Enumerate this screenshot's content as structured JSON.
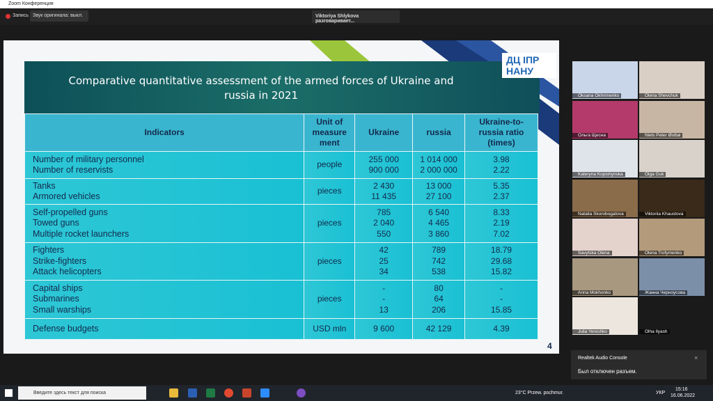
{
  "window": {
    "title": "Zoom Конференция"
  },
  "toolbar": {
    "record": "Запись",
    "audio": "Звук оригинала: выкл.",
    "speaker": "Viktoriya Shlykova разговаривает..."
  },
  "slide": {
    "logo_top": "ДЦ ІПР",
    "logo_bottom": "НАНУ",
    "title": "Comparative quantitative assessment of the armed forces of Ukraine and russia in 2021",
    "page_number": "4",
    "table": {
      "headers": [
        "Indicators",
        "Unit of measure ment",
        "Ukraine",
        "russia",
        "Ukraine-to-russia ratio (times)"
      ],
      "groups": [
        {
          "unit": "people",
          "rows": [
            [
              "Number of military personnel",
              "255 000",
              "1 014 000",
              "3.98"
            ],
            [
              "Number of reservists",
              "900 000",
              "2 000 000",
              "2.22"
            ]
          ]
        },
        {
          "unit": "pieces",
          "rows": [
            [
              "Tanks",
              "2 430",
              "13 000",
              "5.35"
            ],
            [
              "Armored vehicles",
              "11 435",
              "27 100",
              "2.37"
            ]
          ]
        },
        {
          "unit": "pieces",
          "rows": [
            [
              "Self-propelled guns",
              "785",
              "6 540",
              "8.33"
            ],
            [
              "Towed guns",
              "2 040",
              "4 465",
              "2.19"
            ],
            [
              "Multiple rocket launchers",
              "550",
              "3 860",
              "7.02"
            ]
          ]
        },
        {
          "unit": "pieces",
          "rows": [
            [
              "Fighters",
              "42",
              "789",
              "18.79"
            ],
            [
              "Strike-fighters",
              "25",
              "742",
              "29.68"
            ],
            [
              "Attack helicopters",
              "34",
              "538",
              "15.82"
            ]
          ]
        },
        {
          "unit": "pieces",
          "rows": [
            [
              "Capital ships",
              "-",
              "80",
              "-"
            ],
            [
              "Submarines",
              "-",
              "64",
              "-"
            ],
            [
              "Small warships",
              "13",
              "206",
              "15.85"
            ]
          ]
        },
        {
          "unit": "USD mln",
          "rows": [
            [
              "Defense budgets",
              "9 600",
              "42 129",
              "4.39"
            ]
          ]
        }
      ]
    }
  },
  "participants": [
    "Oksana Okhrimenko",
    "Olena Shevchuk",
    "Ольга Щесна",
    "Niels Peter Østbø",
    "Kateryna Kopishynska",
    "Olga Guk",
    "Natalia Skorobogatova",
    "Viktoriia Khaustova",
    "Savytska Olena",
    "Olena Trofymenko",
    "Anna Mokhonko",
    "Жанна Черноусова",
    "Julia Yereshko",
    "Olha Ilyash"
  ],
  "notification": {
    "app": "Realtek Audio Console",
    "message": "Был отключен разъем."
  },
  "taskbar": {
    "search": "Введите здесь текст для поиска",
    "weather": "23°C  Przew. pochmur.",
    "language": "УКР",
    "time": "15:16",
    "date": "16.06.2022"
  }
}
